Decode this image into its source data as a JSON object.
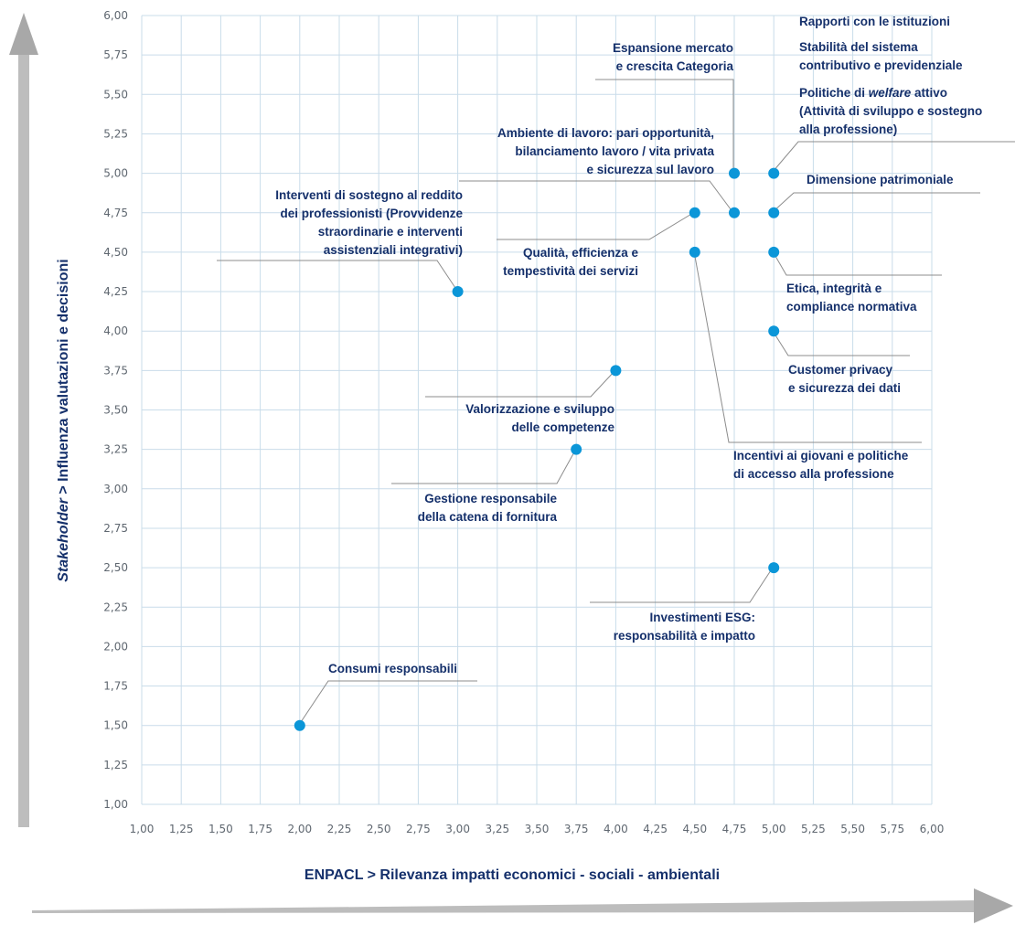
{
  "chart_data": {
    "type": "scatter",
    "xlabel": "ENPACL > Rilevanza impatti economici - sociali - ambientali",
    "ylabel_italic": "Stakeholder",
    "ylabel_rest": " > Influenza valutazioni e decisioni",
    "xlim": [
      1.0,
      6.0
    ],
    "ylim": [
      1.0,
      6.0
    ],
    "tick_step": 0.25,
    "xticks": [
      "1,00",
      "1,25",
      "1,50",
      "1,75",
      "2,00",
      "2,25",
      "2,50",
      "2,75",
      "3,00",
      "3,25",
      "3,50",
      "3,75",
      "4,00",
      "4,25",
      "4,50",
      "4,75",
      "5,00",
      "5,25",
      "5,50",
      "5,75",
      "6,00"
    ],
    "yticks": [
      "1,00",
      "1,25",
      "1,50",
      "1,75",
      "2,00",
      "2,25",
      "2,50",
      "2,75",
      "3,00",
      "3,25",
      "3,50",
      "3,75",
      "4,00",
      "4,25",
      "4,50",
      "4,75",
      "5,00",
      "5,25",
      "5,50",
      "5,75",
      "6,00"
    ],
    "grid": true,
    "colors": {
      "point": "#0b96d8",
      "label": "#15306b",
      "grid": "#c9dcea",
      "leader": "#8c8c8c",
      "arrow": "#bdbdbd"
    },
    "points": [
      {
        "x": 2.0,
        "y": 1.5
      },
      {
        "x": 3.0,
        "y": 4.25
      },
      {
        "x": 3.75,
        "y": 3.25
      },
      {
        "x": 4.0,
        "y": 3.75
      },
      {
        "x": 4.5,
        "y": 4.75
      },
      {
        "x": 4.5,
        "y": 4.5
      },
      {
        "x": 4.75,
        "y": 5.0
      },
      {
        "x": 4.75,
        "y": 4.75
      },
      {
        "x": 5.0,
        "y": 5.0
      },
      {
        "x": 5.0,
        "y": 4.75
      },
      {
        "x": 5.0,
        "y": 4.5
      },
      {
        "x": 5.0,
        "y": 4.0
      },
      {
        "x": 5.0,
        "y": 2.5
      }
    ],
    "annotations": [
      {
        "lines": [
          "Consumi responsabili"
        ]
      },
      {
        "lines": [
          "Interventi di sostegno al reddito",
          "dei professionisti (Provvidenze",
          "straordinarie e interventi",
          "assistenziali integrativi)"
        ]
      },
      {
        "lines": [
          "Gestione responsabile",
          "della catena di fornitura"
        ]
      },
      {
        "lines": [
          "Valorizzazione e sviluppo",
          "delle competenze"
        ]
      },
      {
        "lines": [
          "Qualità, efficienza e",
          "tempestività dei servizi"
        ]
      },
      {
        "lines": [
          "Incentivi ai giovani e politiche",
          "di accesso alla professione"
        ]
      },
      {
        "lines": [
          "Ambiente di lavoro: pari opportunità,",
          "bilanciamento lavoro / vita privata",
          "e sicurezza sul lavoro"
        ]
      },
      {
        "lines": [
          "Espansione mercato",
          "e crescita Categoria"
        ]
      },
      {
        "lines": [
          "Rapporti con le istituzioni"
        ]
      },
      {
        "lines": [
          "Stabilità del sistema",
          "contributivo e previdenziale"
        ]
      },
      {
        "lines": [
          "Politiche di welfare attivo",
          "(Attività di sviluppo e sostegno",
          "alla professione)"
        ]
      },
      {
        "lines": [
          "Dimensione patrimoniale"
        ]
      },
      {
        "lines": [
          "Etica, integrità e",
          "compliance normativa"
        ]
      },
      {
        "lines": [
          "Customer privacy",
          "e sicurezza dei dati"
        ]
      },
      {
        "lines": [
          "Investimenti ESG:",
          "responsabilità e impatto"
        ]
      }
    ]
  }
}
